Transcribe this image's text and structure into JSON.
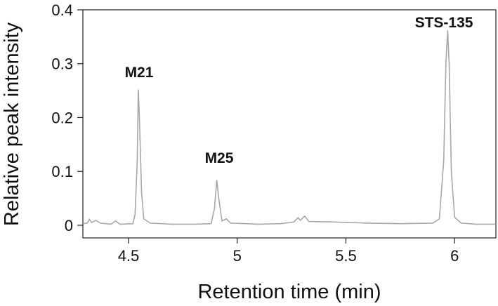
{
  "chart_data": {
    "type": "line",
    "xlabel": "Retention time (min)",
    "ylabel": "Relative peak intensity",
    "x": [
      4.29,
      4.31,
      4.32,
      4.33,
      4.35,
      4.37,
      4.42,
      4.44,
      4.46,
      4.52,
      4.53,
      4.54,
      4.545,
      4.55,
      4.56,
      4.57,
      4.6,
      4.7,
      4.8,
      4.88,
      4.895,
      4.906,
      4.915,
      4.93,
      4.95,
      4.97,
      5.1,
      5.2,
      5.26,
      5.28,
      5.29,
      5.31,
      5.33,
      5.45,
      5.6,
      5.75,
      5.9,
      5.93,
      5.95,
      5.96,
      5.968,
      5.975,
      5.985,
      6.0,
      6.03,
      6.1,
      6.19
    ],
    "series": [
      {
        "color": "#a8a8a8",
        "values": [
          0.003,
          0.004,
          0.011,
          0.005,
          0.009,
          0.004,
          0.002,
          0.008,
          0.002,
          0.003,
          0.02,
          0.12,
          0.252,
          0.2,
          0.06,
          0.012,
          0.004,
          0.002,
          0.002,
          0.003,
          0.03,
          0.084,
          0.05,
          0.008,
          0.012,
          0.004,
          0.002,
          0.003,
          0.006,
          0.014,
          0.009,
          0.017,
          0.007,
          0.006,
          0.004,
          0.003,
          0.004,
          0.012,
          0.12,
          0.3,
          0.362,
          0.3,
          0.1,
          0.015,
          0.004,
          0.002,
          0.002
        ]
      }
    ],
    "annotations": [
      "M21",
      "M25",
      "STS-135"
    ],
    "xlim": [
      4.29,
      6.19
    ],
    "ylim": [
      -0.0235,
      0.4
    ],
    "xticks": [
      4.5,
      5,
      5.5,
      6
    ],
    "yticks": [
      0,
      0.1,
      0.2,
      0.3,
      0.4
    ]
  }
}
